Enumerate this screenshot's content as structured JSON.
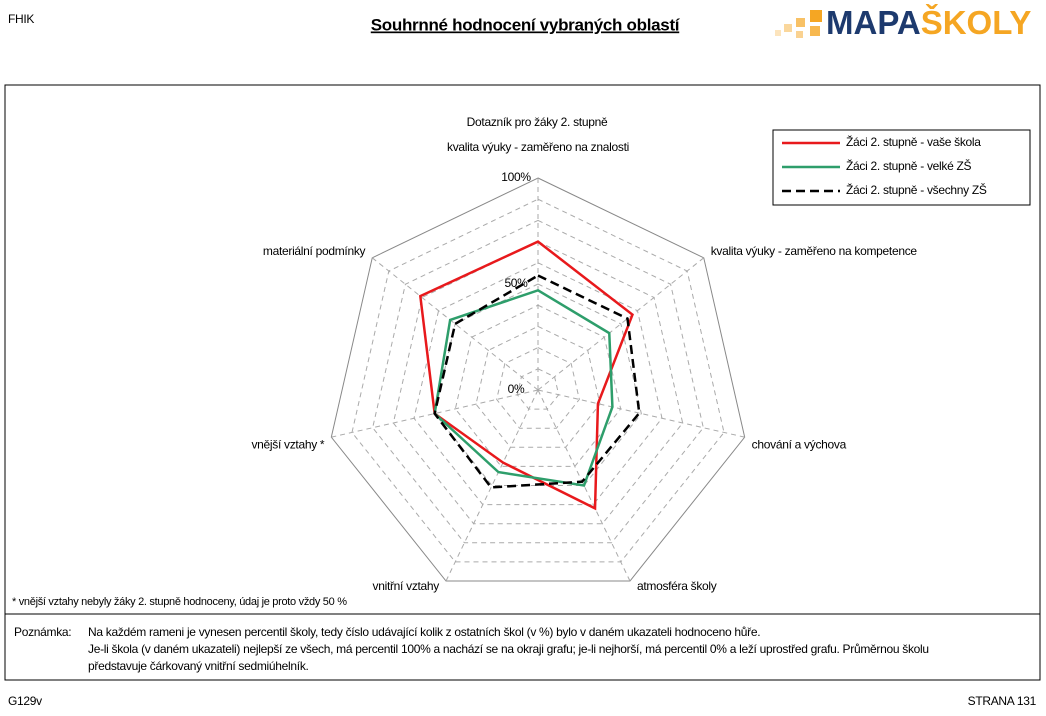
{
  "header": {
    "code": "FHIK",
    "title": "Souhrnné hodnocení vybraných oblastí",
    "logo": {
      "part1": "MAPA",
      "part2": "ŠKOLY"
    }
  },
  "chart_data": {
    "type": "radar",
    "title": "Dotazník pro žáky 2. stupně",
    "categories": [
      "kvalita výuky - zaměřeno na znalosti",
      "kvalita výuky - zaměřeno na kompetence",
      "chování a výchova",
      "atmosféra školy",
      "vnitřní vztahy",
      "vnější vztahy *",
      "materiální podmínky"
    ],
    "rlim": [
      0,
      100
    ],
    "rticks": [
      {
        "value": 0,
        "label": "0%"
      },
      {
        "value": 50,
        "label": "50%"
      },
      {
        "value": 100,
        "label": "100%"
      }
    ],
    "grid_divisions": 10,
    "legend_position": "upper right",
    "series": [
      {
        "name": "Žáci 2. stupně - vaše škola",
        "color": "#e8191c",
        "line_style": "solid",
        "values": [
          70,
          57,
          29,
          62,
          38,
          50,
          71
        ]
      },
      {
        "name": "Žáci 2. stupně - velké ZŠ",
        "color": "#2e9e6b",
        "line_style": "solid",
        "values": [
          47,
          43,
          36,
          50,
          43,
          50,
          53
        ]
      },
      {
        "name": "Žáci 2. stupně - všechny ZŠ",
        "color": "#000000",
        "line_style": "dashed",
        "values": [
          54,
          54,
          49,
          48,
          51,
          50,
          50
        ]
      }
    ],
    "footnote": "* vnější vztahy nebyly žáky 2. stupně hodnoceny, údaj je proto vždy 50 %"
  },
  "note": {
    "label": "Poznámka:",
    "lines": [
      "Na každém rameni je vynesen percentil školy, tedy číslo udávající kolik z ostatních škol (v %) bylo v daném ukazateli hodnoceno hůře.",
      "Je-li škola (v daném ukazateli) nejlepší ze všech, má percentil 100% a nachází se na okraji grafu; je-li nejhorší, má percentil 0% a leží uprostřed grafu. Průměrnou školu",
      "představuje čárkovaný vnitřní sedmiúhelník."
    ]
  },
  "footer": {
    "left": "G129v",
    "right": "STRANA 131"
  }
}
